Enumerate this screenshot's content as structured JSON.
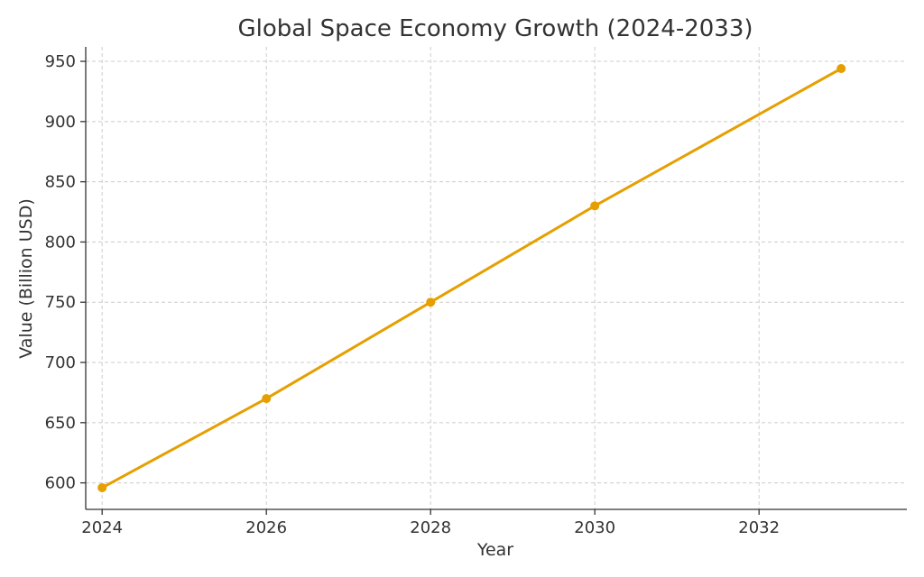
{
  "chart_data": {
    "type": "line",
    "title": "Global Space Economy Growth (2024-2033)",
    "xlabel": "Year",
    "ylabel": "Value (Billion USD)",
    "xlim": [
      2023.8,
      2033.8
    ],
    "ylim": [
      578,
      962
    ],
    "x_ticks": [
      2024,
      2026,
      2028,
      2030,
      2032
    ],
    "y_ticks": [
      600,
      650,
      700,
      750,
      800,
      850,
      900,
      950
    ],
    "grid": true,
    "series": [
      {
        "x": [
          2024,
          2026,
          2028,
          2030,
          2033
        ],
        "values": [
          596,
          670,
          750,
          830,
          944
        ],
        "color": "#E69F00"
      }
    ]
  }
}
